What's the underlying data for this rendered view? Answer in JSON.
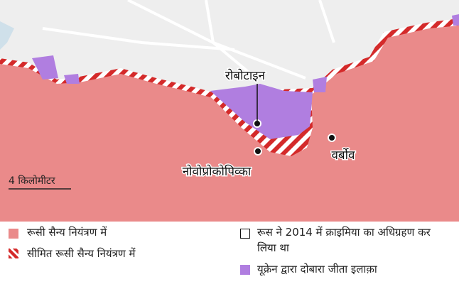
{
  "map": {
    "places": [
      {
        "label": "रोबोटाइन"
      },
      {
        "label": "नोवोप्रोकोपिव्का"
      },
      {
        "label": "वर्बोव"
      }
    ],
    "scale": "4 किलोमीटर"
  },
  "legend": [
    {
      "label": "रूसी सैन्य नियंत्रण में"
    },
    {
      "label": "सीमित रूसी सैन्य नियंत्रण में"
    },
    {
      "label": "रूस ने 2014 में क्राइमिया का अधिग्रहण कर लिया था"
    },
    {
      "label": "यूक्रेन द्वारा दोबारा जीता इलाक़ा"
    }
  ]
}
